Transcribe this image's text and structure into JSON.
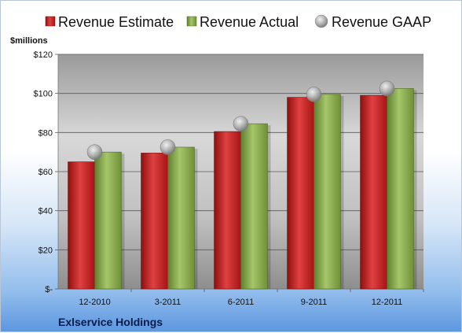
{
  "chart_data": {
    "type": "bar",
    "title": "",
    "company": "Exlservice Holdings",
    "ylabel": "$millions",
    "xlabel": "",
    "categories": [
      "12-2010",
      "3-2011",
      "6-2011",
      "9-2011",
      "12-2011"
    ],
    "ylim": [
      0,
      120
    ],
    "yticks": [
      0,
      20,
      40,
      60,
      80,
      100,
      120
    ],
    "ytick_labels": [
      "$-",
      "$20",
      "$40",
      "$60",
      "$80",
      "$100",
      "$120"
    ],
    "grid": true,
    "legend_position": "top",
    "series": [
      {
        "name": "Revenue Estimate",
        "kind": "bar",
        "color": "#c81e1e",
        "values": [
          65,
          69.5,
          80.5,
          98,
          99
        ]
      },
      {
        "name": "Revenue Actual",
        "kind": "bar",
        "color": "#8db050",
        "values": [
          70,
          72.5,
          84.5,
          99.5,
          102.5
        ]
      },
      {
        "name": "Revenue GAAP",
        "kind": "marker",
        "color": "#b4b4b4",
        "values": [
          70,
          72.5,
          84.5,
          99.5,
          102.5
        ]
      }
    ]
  }
}
